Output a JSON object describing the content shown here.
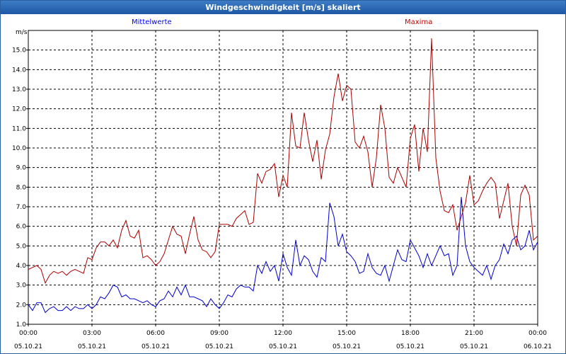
{
  "window_title": "Windgeschwindigkeit [m/s] skaliert",
  "chart_data": {
    "type": "line",
    "ylabel": "m/s",
    "ylim": [
      1.0,
      16.0
    ],
    "y_ticks": [
      "1.0",
      "2.0",
      "3.0",
      "4.0",
      "5.0",
      "6.0",
      "7.0",
      "8.0",
      "9.0",
      "10.0",
      "11.0",
      "12.0",
      "13.0",
      "14.0",
      "15.0"
    ],
    "x_ticks": [
      {
        "time": "00:00",
        "date": "05.10.21"
      },
      {
        "time": "03:00",
        "date": "05.10.21"
      },
      {
        "time": "06:00",
        "date": "05.10.21"
      },
      {
        "time": "09:00",
        "date": "05.10.21"
      },
      {
        "time": "12:00",
        "date": "05.10.21"
      },
      {
        "time": "15:00",
        "date": "05.10.21"
      },
      {
        "time": "18:00",
        "date": "05.10.21"
      },
      {
        "time": "21:00",
        "date": "05.10.21"
      },
      {
        "time": "00:00",
        "date": "06.10.21"
      }
    ],
    "xlim": [
      0,
      24
    ],
    "grid": true,
    "series": [
      {
        "name": "Mittelwerte",
        "color": "#0000cc",
        "x": [
          0,
          0.2,
          0.4,
          0.6,
          0.8,
          1.0,
          1.2,
          1.4,
          1.6,
          1.8,
          2.0,
          2.2,
          2.4,
          2.6,
          2.8,
          3.0,
          3.2,
          3.4,
          3.6,
          3.8,
          4.0,
          4.2,
          4.4,
          4.6,
          4.8,
          5.0,
          5.2,
          5.4,
          5.6,
          5.8,
          6.0,
          6.2,
          6.4,
          6.6,
          6.8,
          7.0,
          7.2,
          7.4,
          7.6,
          7.8,
          8.0,
          8.2,
          8.4,
          8.6,
          8.8,
          9.0,
          9.2,
          9.4,
          9.6,
          9.8,
          10.0,
          10.2,
          10.4,
          10.6,
          10.8,
          11.0,
          11.2,
          11.4,
          11.6,
          11.8,
          12.0,
          12.2,
          12.4,
          12.6,
          12.8,
          13.0,
          13.2,
          13.4,
          13.6,
          13.8,
          14.0,
          14.2,
          14.4,
          14.6,
          14.8,
          15.0,
          15.2,
          15.4,
          15.6,
          15.8,
          16.0,
          16.2,
          16.4,
          16.6,
          16.8,
          17.0,
          17.2,
          17.4,
          17.6,
          17.8,
          18.0,
          18.2,
          18.4,
          18.6,
          18.8,
          19.0,
          19.2,
          19.4,
          19.6,
          19.8,
          20.0,
          20.2,
          20.4,
          20.6,
          20.8,
          21.0,
          21.2,
          21.4,
          21.6,
          21.8,
          22.0,
          22.2,
          22.4,
          22.6,
          22.8,
          23.0,
          23.2,
          23.4,
          23.6,
          23.8,
          24.0
        ],
        "values": [
          2.0,
          1.7,
          2.1,
          2.1,
          1.6,
          1.8,
          1.9,
          1.7,
          1.7,
          1.9,
          1.7,
          1.9,
          1.8,
          1.8,
          2.0,
          1.8,
          2.0,
          2.4,
          2.3,
          2.6,
          3.0,
          2.9,
          2.4,
          2.5,
          2.3,
          2.3,
          2.2,
          2.1,
          2.2,
          2.0,
          1.9,
          2.2,
          2.3,
          2.7,
          2.4,
          2.9,
          2.5,
          3.0,
          2.4,
          2.4,
          2.3,
          2.2,
          1.9,
          2.3,
          2.0,
          1.8,
          2.1,
          2.5,
          2.4,
          2.8,
          3.0,
          2.9,
          2.9,
          2.7,
          4.0,
          3.6,
          4.2,
          3.7,
          4.0,
          3.2,
          4.6,
          3.9,
          3.5,
          5.3,
          4.0,
          4.5,
          4.3,
          3.7,
          3.4,
          4.4,
          4.2,
          7.2,
          6.5,
          5.0,
          5.6,
          4.7,
          4.5,
          4.2,
          3.6,
          3.7,
          4.6,
          3.9,
          3.6,
          3.5,
          4.0,
          3.2,
          4.0,
          4.8,
          4.3,
          4.2,
          5.3,
          4.9,
          4.5,
          3.9,
          4.6,
          4.0,
          4.5,
          5.0,
          4.5,
          4.6,
          3.5,
          4.0,
          7.5,
          5.0,
          4.2,
          3.9,
          3.7,
          3.5,
          4.0,
          3.3,
          4.0,
          4.3,
          5.1,
          4.6,
          5.3,
          5.5,
          4.8,
          5.0,
          5.8,
          4.8,
          5.2
        ]
      },
      {
        "name": "Maxima",
        "color": "#aa0000",
        "x": [
          0,
          0.2,
          0.4,
          0.6,
          0.8,
          1.0,
          1.2,
          1.4,
          1.6,
          1.8,
          2.0,
          2.2,
          2.4,
          2.6,
          2.8,
          3.0,
          3.2,
          3.4,
          3.6,
          3.8,
          4.0,
          4.2,
          4.4,
          4.6,
          4.8,
          5.0,
          5.2,
          5.4,
          5.6,
          5.8,
          6.0,
          6.2,
          6.4,
          6.6,
          6.8,
          7.0,
          7.2,
          7.4,
          7.6,
          7.8,
          8.0,
          8.2,
          8.4,
          8.6,
          8.8,
          9.0,
          9.2,
          9.4,
          9.6,
          9.8,
          10.0,
          10.2,
          10.4,
          10.6,
          10.8,
          11.0,
          11.2,
          11.4,
          11.6,
          11.8,
          12.0,
          12.2,
          12.4,
          12.6,
          12.8,
          13.0,
          13.2,
          13.4,
          13.6,
          13.8,
          14.0,
          14.2,
          14.4,
          14.6,
          14.8,
          15.0,
          15.2,
          15.4,
          15.6,
          15.8,
          16.0,
          16.2,
          16.4,
          16.6,
          16.8,
          17.0,
          17.2,
          17.4,
          17.6,
          17.8,
          18.0,
          18.2,
          18.4,
          18.6,
          18.8,
          19.0,
          19.2,
          19.4,
          19.6,
          19.8,
          20.0,
          20.2,
          20.4,
          20.6,
          20.8,
          21.0,
          21.2,
          21.4,
          21.6,
          21.8,
          22.0,
          22.2,
          22.4,
          22.6,
          22.8,
          23.0,
          23.2,
          23.4,
          23.6,
          23.8,
          24.0
        ],
        "values": [
          3.8,
          3.9,
          4.0,
          3.8,
          3.1,
          3.5,
          3.7,
          3.6,
          3.7,
          3.5,
          3.7,
          3.8,
          3.7,
          3.6,
          4.4,
          4.3,
          4.9,
          5.2,
          5.2,
          5.0,
          5.3,
          4.9,
          5.8,
          6.3,
          5.5,
          5.4,
          5.8,
          4.4,
          4.5,
          4.3,
          4.0,
          4.2,
          4.6,
          5.3,
          6.0,
          5.6,
          5.5,
          4.6,
          5.6,
          6.5,
          5.3,
          4.8,
          4.7,
          4.4,
          4.7,
          6.1,
          6.1,
          6.1,
          6.0,
          6.4,
          6.6,
          6.8,
          6.1,
          6.2,
          8.7,
          8.2,
          8.8,
          8.9,
          9.2,
          7.5,
          8.6,
          8.0,
          11.8,
          10.1,
          10.0,
          11.8,
          10.4,
          9.3,
          10.4,
          8.4,
          9.9,
          10.7,
          12.6,
          13.8,
          12.4,
          13.2,
          13.0,
          10.3,
          10.0,
          10.6,
          9.8,
          8.0,
          9.5,
          12.2,
          11.0,
          8.5,
          8.2,
          9.0,
          8.5,
          8.0,
          10.5,
          11.2,
          8.8,
          11.0,
          9.8,
          15.6,
          9.5,
          7.8,
          6.8,
          6.7,
          7.1,
          5.8,
          6.5,
          7.2,
          8.6,
          7.1,
          7.3,
          7.8,
          8.2,
          8.5,
          8.2,
          6.4,
          7.3,
          8.2,
          6.0,
          5.0,
          7.6,
          8.1,
          7.6,
          5.3,
          5.5
        ]
      }
    ]
  }
}
